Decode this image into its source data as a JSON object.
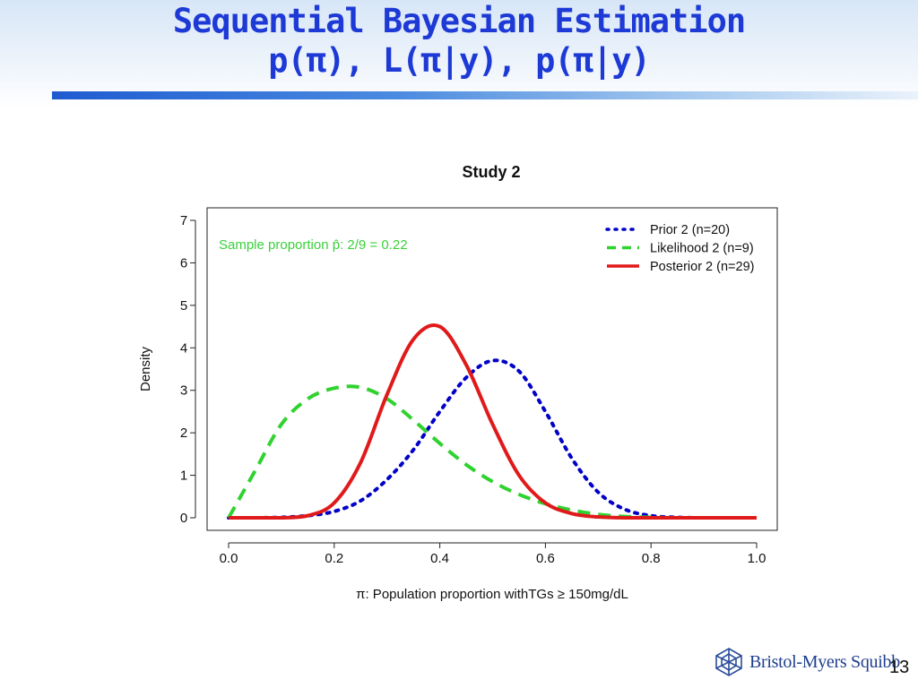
{
  "slide": {
    "title_line1": "Sequential Bayesian Estimation",
    "title_line2": "p(π), L(π|y), p(π|y)",
    "brand": "Bristol-Myers Squibb",
    "page_number": "13"
  },
  "chart_data": {
    "type": "line",
    "title": "Study 2",
    "xlabel": "π: Population proportion withTGs ≥ 150mg/dL",
    "ylabel": "Density",
    "xlim": [
      0,
      1
    ],
    "ylim": [
      0,
      7
    ],
    "xticks": [
      "0.0",
      "0.2",
      "0.4",
      "0.6",
      "0.8",
      "1.0"
    ],
    "yticks": [
      "0",
      "1",
      "2",
      "3",
      "4",
      "5",
      "6",
      "7"
    ],
    "annotation": "Sample proportion p̂: 2/9 = 0.22",
    "legend_position": "top-right",
    "grid": false,
    "x": [
      0.0,
      0.05,
      0.1,
      0.15,
      0.2,
      0.25,
      0.3,
      0.35,
      0.4,
      0.45,
      0.5,
      0.55,
      0.6,
      0.65,
      0.7,
      0.75,
      0.8,
      0.85,
      0.9,
      0.95,
      1.0
    ],
    "series": [
      {
        "name": "Prior 2 (n=20)",
        "color": "#0000c8",
        "style": "dotted",
        "values": [
          0.0,
          0.0,
          0.01,
          0.05,
          0.15,
          0.4,
          0.9,
          1.6,
          2.5,
          3.3,
          3.7,
          3.45,
          2.5,
          1.4,
          0.6,
          0.2,
          0.05,
          0.01,
          0.0,
          0.0,
          0.0
        ]
      },
      {
        "name": "Likelihood 2 (n=9)",
        "color": "#2fd22f",
        "style": "dashed",
        "values": [
          0.0,
          1.1,
          2.2,
          2.8,
          3.05,
          3.07,
          2.8,
          2.3,
          1.75,
          1.25,
          0.85,
          0.55,
          0.33,
          0.18,
          0.08,
          0.03,
          0.01,
          0.0,
          0.0,
          0.0,
          0.0
        ]
      },
      {
        "name": "Posterior 2 (n=29)",
        "color": "#e01a1a",
        "style": "solid",
        "values": [
          0.0,
          0.0,
          0.0,
          0.05,
          0.35,
          1.3,
          2.9,
          4.2,
          4.5,
          3.6,
          2.2,
          1.0,
          0.35,
          0.1,
          0.02,
          0.0,
          0.0,
          0.0,
          0.0,
          0.0,
          0.0
        ]
      }
    ]
  }
}
